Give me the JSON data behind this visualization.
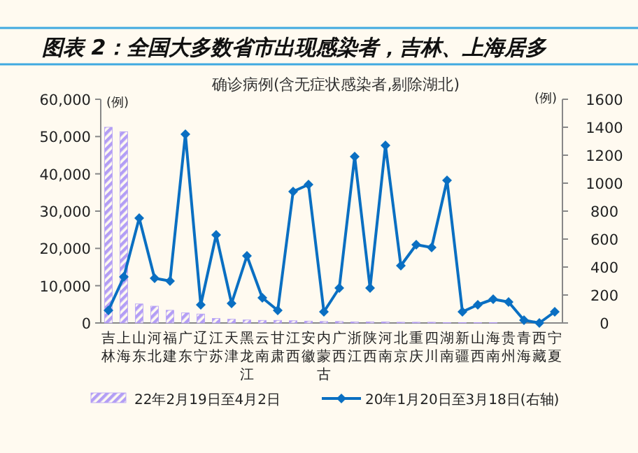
{
  "chart_data": {
    "type": "bar",
    "title": "图表 2：全国大多数省市出现感染者，吉林、上海居多",
    "subtitle": "确诊病例(含无症状感染者,剔除湖北)",
    "ylabel": "(例)",
    "y2label": "(例)",
    "categories": [
      "吉林",
      "上海",
      "山东",
      "河北",
      "福建",
      "广东",
      "辽宁",
      "江苏",
      "天津",
      "黑龙江",
      "云南",
      "甘肃",
      "江西",
      "安徽",
      "内蒙古",
      "广西",
      "浙江",
      "陕西",
      "河南",
      "北京",
      "重庆",
      "四川",
      "湖南",
      "新疆",
      "山西",
      "海南",
      "贵州",
      "青海",
      "西藏",
      "宁夏"
    ],
    "series": [
      {
        "name": "22年2月19日至4月2日",
        "color": "#b39ef5",
        "values": [
          52500,
          51300,
          5100,
          4500,
          3400,
          2700,
          2400,
          1200,
          1000,
          800,
          700,
          700,
          600,
          500,
          400,
          400,
          300,
          300,
          300,
          200,
          200,
          200,
          100,
          100,
          100,
          100,
          0,
          0,
          0,
          0
        ]
      },
      {
        "name": "20年1月20日至3月18日(右轴)",
        "type": "line",
        "axis": "y2",
        "color": "#0a6fc2",
        "marker": "diamond",
        "values": [
          90,
          330,
          750,
          320,
          300,
          1350,
          130,
          630,
          140,
          480,
          180,
          90,
          940,
          990,
          80,
          250,
          1190,
          250,
          1270,
          410,
          560,
          540,
          1020,
          80,
          130,
          170,
          150,
          20,
          0,
          80
        ]
      }
    ],
    "ylim": [
      0,
      60000
    ],
    "yticks": [
      {
        "value": 0,
        "label": "0"
      },
      {
        "value": 10000,
        "label": "10,000"
      },
      {
        "value": 20000,
        "label": "20,000"
      },
      {
        "value": 30000,
        "label": "30,000"
      },
      {
        "value": 40000,
        "label": "40,000"
      },
      {
        "value": 50000,
        "label": "50,000"
      },
      {
        "value": 60000,
        "label": "60,000"
      }
    ],
    "y2lim": [
      0,
      1600
    ],
    "y2ticks": [
      0,
      200,
      400,
      600,
      800,
      1000,
      1200,
      1400,
      1600
    ],
    "legend": "bottom",
    "grid": false
  }
}
